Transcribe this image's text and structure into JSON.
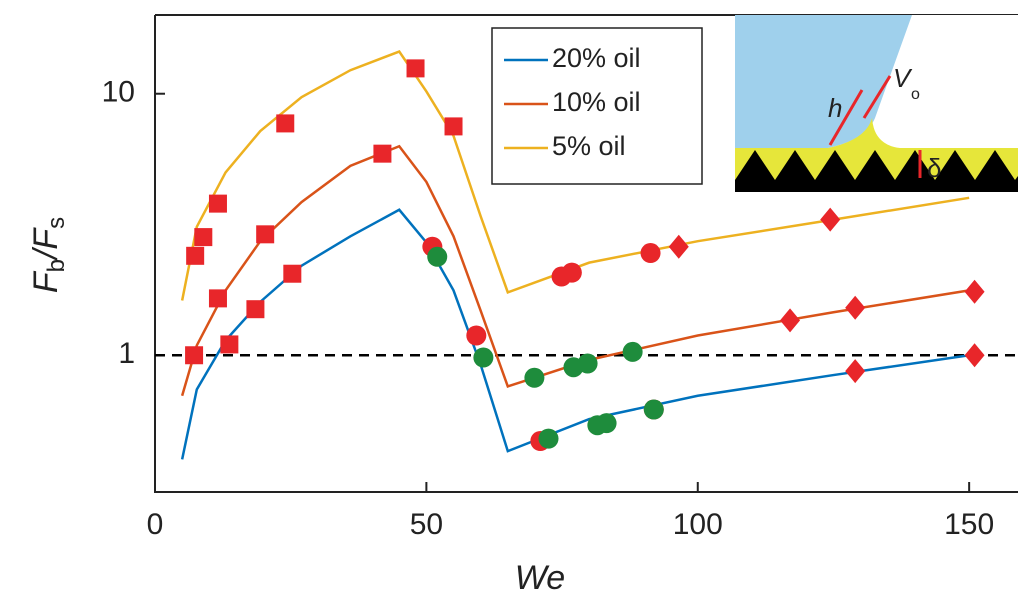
{
  "chart_data": {
    "type": "line",
    "xlabel": "We",
    "ylabel": [
      "F",
      "b",
      "/F",
      "s"
    ],
    "xlim": [
      0,
      159
    ],
    "xticks": [
      0,
      50,
      100,
      150
    ],
    "ylim": [
      0.3,
      20
    ],
    "yticks": [
      1,
      10
    ],
    "yscale": "log",
    "reference_line": 1,
    "legend": "upper center",
    "series": [
      {
        "name": "20% oil",
        "color": "#0072bd",
        "x": [
          5,
          7.7,
          13,
          19.4,
          27,
          36,
          45,
          50,
          55,
          60,
          65,
          80,
          100,
          125,
          150
        ],
        "values": [
          0.4,
          0.74,
          1.14,
          1.6,
          2.2,
          2.85,
          3.6,
          2.7,
          1.77,
          0.92,
          0.43,
          0.57,
          0.7,
          0.84,
          1.0
        ]
      },
      {
        "name": "10% oil",
        "color": "#d95319",
        "x": [
          5,
          7.7,
          13,
          19.4,
          27,
          36,
          45,
          50,
          55,
          60,
          65,
          80,
          100,
          125,
          150
        ],
        "values": [
          0.7,
          1.09,
          1.77,
          2.73,
          3.85,
          5.3,
          6.3,
          4.6,
          2.85,
          1.48,
          0.76,
          0.96,
          1.19,
          1.46,
          1.77
        ]
      },
      {
        "name": "5% oil",
        "color": "#edb120",
        "x": [
          5,
          7.7,
          13,
          19.4,
          27,
          36,
          45,
          50,
          55,
          60,
          65,
          80,
          100,
          125,
          150
        ],
        "values": [
          1.62,
          3.1,
          5.0,
          7.2,
          9.7,
          12.3,
          14.5,
          10.2,
          6.9,
          3.4,
          1.74,
          2.26,
          2.73,
          3.3,
          4.0
        ]
      },
      {
        "marker": "square",
        "color": "#e8262a",
        "x": [
          7.4,
          8.9,
          11.6,
          24,
          48,
          55,
          7.2,
          11.6,
          13.7,
          18.5,
          20.3,
          25.3,
          41.9
        ],
        "values": [
          2.4,
          2.83,
          3.8,
          7.7,
          12.5,
          7.5,
          1.0,
          1.65,
          1.1,
          1.5,
          2.9,
          2.05,
          5.9
        ]
      },
      {
        "marker": "circle",
        "color": "#e8262a",
        "x": [
          51.1,
          59.2,
          74.9,
          76.8,
          91.3,
          71,
          91.9
        ],
        "values": [
          2.6,
          1.19,
          2.0,
          2.07,
          2.46,
          0.47,
          0.62
        ]
      },
      {
        "marker": "circle",
        "color": "#1e8c3c",
        "x": [
          52,
          60.5,
          69.9,
          77.1,
          79.7,
          88,
          72.5,
          81.5,
          83.2,
          91.9
        ],
        "values": [
          2.38,
          0.98,
          0.82,
          0.9,
          0.93,
          1.03,
          0.48,
          0.54,
          0.55,
          0.62
        ]
      },
      {
        "marker": "diamond",
        "color": "#e8262a",
        "x": [
          96.5,
          124.4,
          117,
          129,
          151,
          129,
          151
        ],
        "values": [
          2.6,
          3.3,
          1.36,
          1.52,
          1.75,
          0.87,
          1.0
        ]
      }
    ]
  },
  "inset": {
    "labels": [
      "h",
      "V",
      "o",
      "δ"
    ]
  }
}
